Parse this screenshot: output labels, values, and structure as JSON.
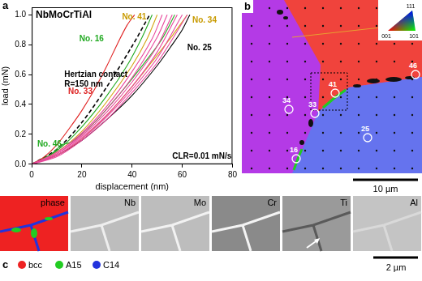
{
  "chart_data": {
    "type": "line",
    "title": "NbMoCrTiAl",
    "x_label": "displacement (nm)",
    "y_label": "load (mN)",
    "xlim": [
      0,
      80
    ],
    "xticks": [
      0,
      20,
      40,
      60,
      80
    ],
    "ylim": [
      0,
      1.05
    ],
    "yticks": [
      {
        "value": 0,
        "label": "0.0"
      },
      {
        "value": 0.2,
        "label": "0.2"
      },
      {
        "value": 0.4,
        "label": "0.4"
      },
      {
        "value": 0.6,
        "label": "0.6"
      },
      {
        "value": 0.8,
        "label": "0.8"
      },
      {
        "value": 1.0,
        "label": "1.0"
      }
    ],
    "grid": false,
    "series": [
      {
        "color": "#e8489c",
        "line_style": "solid",
        "x": [
          0,
          10,
          20,
          30,
          40,
          48,
          52
        ],
        "values": [
          0,
          0.08,
          0.21,
          0.39,
          0.62,
          0.84,
          1.0
        ]
      },
      {
        "color": "#e8489c",
        "line_style": "solid",
        "x": [
          0,
          10,
          20,
          30,
          40,
          50,
          54
        ],
        "values": [
          0,
          0.07,
          0.2,
          0.37,
          0.58,
          0.85,
          1.0
        ]
      },
      {
        "color": "#e8489c",
        "line_style": "solid",
        "x": [
          0,
          10,
          20,
          30,
          40,
          50,
          56
        ],
        "values": [
          0,
          0.07,
          0.19,
          0.35,
          0.55,
          0.79,
          1.0
        ]
      },
      {
        "color": "#e8489c",
        "line_style": "solid",
        "x": [
          0,
          10,
          20,
          30,
          40,
          50,
          58
        ],
        "values": [
          0,
          0.06,
          0.18,
          0.33,
          0.52,
          0.75,
          1.0
        ]
      },
      {
        "color": "#e8489c",
        "line_style": "solid",
        "x": [
          0,
          10,
          20,
          30,
          40,
          50,
          60
        ],
        "values": [
          0,
          0.06,
          0.17,
          0.32,
          0.5,
          0.71,
          1.0
        ]
      },
      {
        "color": "#e8489c",
        "line_style": "solid",
        "x": [
          0,
          10,
          20,
          30,
          40,
          50,
          62
        ],
        "values": [
          0,
          0.05,
          0.16,
          0.3,
          0.48,
          0.68,
          1.0
        ]
      },
      {
        "color": "#e02020",
        "line_style": "solid",
        "x": [
          0,
          5,
          10,
          15,
          20,
          25,
          30,
          34,
          38,
          41
        ],
        "values": [
          0,
          0.05,
          0.13,
          0.24,
          0.36,
          0.5,
          0.66,
          0.8,
          0.93,
          1.0
        ]
      },
      {
        "color": "#22aa22",
        "line_style": "solid",
        "x": [
          0,
          10,
          20,
          30,
          38,
          44,
          48
        ],
        "values": [
          0,
          0.09,
          0.25,
          0.46,
          0.66,
          0.85,
          1.0
        ]
      },
      {
        "color": "#22aa22",
        "line_style": "solid",
        "x": [
          0,
          8,
          12,
          16,
          25,
          35,
          45,
          52,
          57
        ],
        "values": [
          0,
          0.07,
          0.13,
          0.15,
          0.28,
          0.47,
          0.68,
          0.84,
          1.0
        ]
      },
      {
        "color": "#d4a514",
        "line_style": "solid",
        "x": [
          0,
          10,
          20,
          30,
          40,
          46,
          50
        ],
        "values": [
          0,
          0.08,
          0.22,
          0.42,
          0.66,
          0.84,
          1.0
        ]
      },
      {
        "color": "#d4a514",
        "line_style": "solid",
        "x": [
          0,
          10,
          20,
          30,
          40,
          50,
          56,
          62
        ],
        "values": [
          0,
          0.06,
          0.17,
          0.33,
          0.52,
          0.73,
          0.86,
          1.0
        ]
      },
      {
        "color": "#000000",
        "line_style": "solid",
        "x": [
          0,
          10,
          20,
          30,
          40,
          50,
          56,
          60,
          63
        ],
        "values": [
          0,
          0.06,
          0.16,
          0.3,
          0.46,
          0.66,
          0.8,
          0.9,
          1.0
        ]
      },
      {
        "color": "#000000",
        "line_style": "dashed",
        "x": [
          0,
          10,
          20,
          30,
          40,
          47
        ],
        "values": [
          0,
          0.1,
          0.28,
          0.52,
          0.79,
          1.0
        ]
      }
    ],
    "annotations": [
      {
        "text": "No. 41",
        "x": 36,
        "y": 0.985,
        "color": "#c89a00"
      },
      {
        "text": "No. 34",
        "x": 64,
        "y": 0.96,
        "color": "#c89a00"
      },
      {
        "text": "No. 16",
        "x": 19,
        "y": 0.835,
        "color": "#22aa22"
      },
      {
        "text": "No. 25",
        "x": 62,
        "y": 0.78,
        "color": "#000000"
      },
      {
        "text": [
          "Hertzian contact",
          "R=150 nm"
        ],
        "x": 13,
        "y": 0.6,
        "color": "#000000"
      },
      {
        "text": "No. 33",
        "x": 14.5,
        "y": 0.485,
        "color": "#dd2222"
      },
      {
        "text": "No. 46",
        "x": 2.2,
        "y": 0.135,
        "color": "#22aa22"
      },
      {
        "text": "CLR=0.01 mN/s",
        "x": 56,
        "y": 0.05,
        "color": "#000000"
      }
    ]
  },
  "panel_a": {
    "label": "a"
  },
  "panel_b": {
    "label": "b",
    "indents": [
      "46",
      "41",
      "34",
      "33",
      "25",
      "16"
    ],
    "ipf_labels": [
      "111",
      "001",
      "101"
    ],
    "scale_bar": "10 µm"
  },
  "panel_c": {
    "label": "c",
    "maps": [
      "phase",
      "Nb",
      "Mo",
      "Cr",
      "Ti",
      "Al"
    ],
    "legend": [
      {
        "name": "bcc",
        "color": "#ee2222"
      },
      {
        "name": "A15",
        "color": "#22cc22"
      },
      {
        "name": "C14",
        "color": "#2233dd"
      }
    ],
    "scale_bar": "2 µm"
  }
}
